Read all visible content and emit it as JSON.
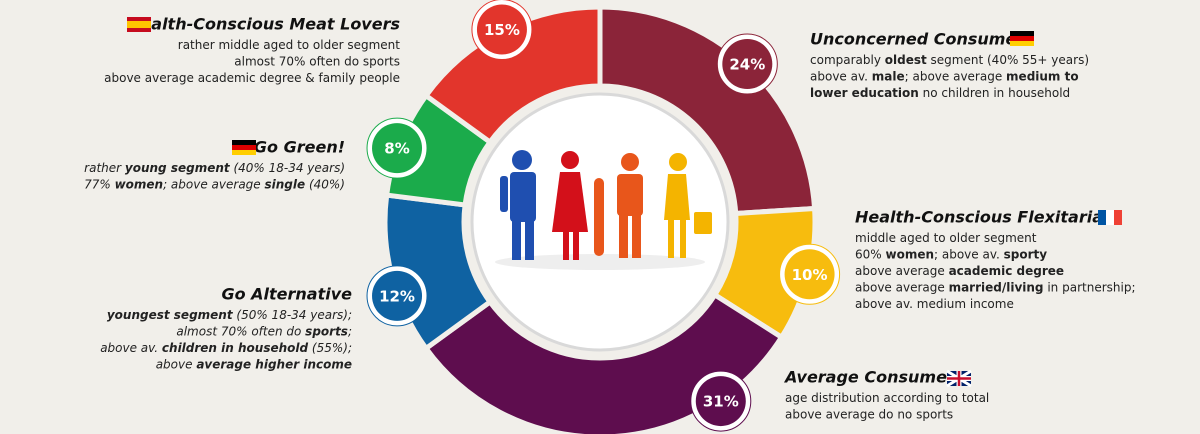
{
  "chart_data": {
    "type": "pie",
    "categories": [
      "Unconcerned Consumer",
      "Health-Conscious Flexitarian",
      "Average Consumer",
      "Go Alternative",
      "Go Green!",
      "Health-Conscious Meat Lovers"
    ],
    "values": [
      24,
      10,
      31,
      12,
      8,
      15
    ],
    "value_labels": [
      "24%",
      "10%",
      "31%",
      "12%",
      "8%",
      "15%"
    ],
    "colors": [
      "#8b2439",
      "#f7bc0e",
      "#5e0d4e",
      "#0f62a2",
      "#1bab4b",
      "#e2352c"
    ],
    "descriptions": [
      [
        [
          "comparably ",
          {
            "bold": "oldest"
          },
          " segment (40% 55+ years)"
        ],
        [
          "above av. ",
          {
            "bold": "male"
          },
          "; above average ",
          {
            "bold": "medium to"
          }
        ],
        [
          {
            "bold": "lower education"
          },
          " no children in household"
        ]
      ],
      [
        [
          "middle aged to older segment"
        ],
        [
          "60% ",
          {
            "bold": "women"
          },
          "; above av. ",
          {
            "bold": "sporty"
          }
        ],
        [
          "above average ",
          {
            "bold": "academic degree"
          }
        ],
        [
          "above average ",
          {
            "bold": "married/living"
          },
          " in partnership;"
        ],
        [
          "above av. medium income"
        ]
      ],
      [
        [
          "age distribution according to total"
        ],
        [
          "above average do no sports"
        ]
      ],
      [
        [
          {
            "bold": "youngest segment"
          },
          " (50% 18-34 years);"
        ],
        [
          "almost 70% often do ",
          {
            "bold": "sports"
          },
          ";"
        ],
        [
          "above av. ",
          {
            "bold": "children in household"
          },
          " (55%);"
        ],
        [
          "above ",
          {
            "bold": "average higher income"
          }
        ]
      ],
      [
        [
          "rather ",
          {
            "bold": "young segment"
          },
          " (40% 18-34 years)"
        ],
        [
          "77% ",
          {
            "bold": "women"
          },
          "; above average ",
          {
            "bold": "single"
          },
          " (40%)"
        ]
      ],
      [
        [
          "rather middle aged to older segment"
        ],
        [
          "almost 70% often do sports"
        ],
        [
          "above average academic degree & family people"
        ]
      ]
    ]
  }
}
